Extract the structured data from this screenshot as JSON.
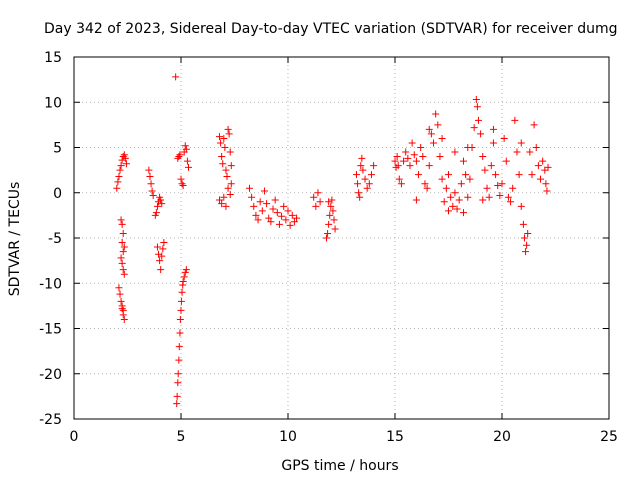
{
  "chart_data": {
    "type": "scatter",
    "title": "Day 342 of 2023, Sidereal Day-to-day VTEC variation (SDTVAR) for receiver dumg",
    "xlabel": "GPS time / hours",
    "ylabel": "SDTVAR / TECUs",
    "xlim": [
      0,
      25
    ],
    "ylim": [
      -25,
      15
    ],
    "xticks": [
      0,
      5,
      10,
      15,
      20,
      25
    ],
    "yticks": [
      -25,
      -20,
      -15,
      -10,
      -5,
      0,
      5,
      10,
      15
    ],
    "grid": true,
    "marker": "+",
    "color": "#ff0000",
    "series": [
      {
        "name": "SDTVAR",
        "points": [
          [
            2.0,
            0.5
          ],
          [
            2.05,
            1.2
          ],
          [
            2.1,
            1.8
          ],
          [
            2.15,
            2.5
          ],
          [
            2.2,
            3.0
          ],
          [
            2.25,
            3.6
          ],
          [
            2.3,
            4.0
          ],
          [
            2.35,
            4.2
          ],
          [
            2.4,
            3.8
          ],
          [
            2.45,
            3.2
          ],
          [
            2.1,
            -10.5
          ],
          [
            2.15,
            -11.2
          ],
          [
            2.2,
            -12.0
          ],
          [
            2.25,
            -12.8
          ],
          [
            2.3,
            -13.5
          ],
          [
            2.35,
            -14.0
          ],
          [
            2.3,
            -13.0
          ],
          [
            2.25,
            -12.5
          ],
          [
            2.2,
            -7.2
          ],
          [
            2.25,
            -7.8
          ],
          [
            2.3,
            -8.5
          ],
          [
            2.35,
            -9.0
          ],
          [
            2.3,
            -6.5
          ],
          [
            2.25,
            -5.5
          ],
          [
            2.3,
            -4.5
          ],
          [
            2.25,
            -3.5
          ],
          [
            2.2,
            -3.0
          ],
          [
            2.35,
            -6.0
          ],
          [
            3.5,
            2.5
          ],
          [
            3.55,
            1.8
          ],
          [
            3.6,
            1.0
          ],
          [
            3.65,
            0.2
          ],
          [
            3.7,
            -0.3
          ],
          [
            3.8,
            -2.5
          ],
          [
            3.85,
            -2.2
          ],
          [
            3.9,
            -1.5
          ],
          [
            3.95,
            -1.0
          ],
          [
            4.0,
            -0.5
          ],
          [
            4.05,
            -0.8
          ],
          [
            4.1,
            -1.2
          ],
          [
            3.9,
            -6.0
          ],
          [
            3.95,
            -6.8
          ],
          [
            4.0,
            -7.5
          ],
          [
            4.05,
            -8.5
          ],
          [
            4.1,
            -7.0
          ],
          [
            4.15,
            -6.2
          ],
          [
            4.2,
            -5.5
          ],
          [
            4.75,
            12.8
          ],
          [
            4.8,
            -23.3
          ],
          [
            4.82,
            -22.5
          ],
          [
            4.85,
            -21.0
          ],
          [
            4.87,
            -20.0
          ],
          [
            4.9,
            -18.5
          ],
          [
            4.92,
            -17.0
          ],
          [
            4.95,
            -15.5
          ],
          [
            4.97,
            -14.0
          ],
          [
            5.0,
            -13.0
          ],
          [
            5.02,
            -12.0
          ],
          [
            5.05,
            -11.0
          ],
          [
            5.08,
            -10.2
          ],
          [
            5.1,
            -9.8
          ],
          [
            5.15,
            -9.3
          ],
          [
            5.2,
            -8.8
          ],
          [
            5.25,
            -8.5
          ],
          [
            4.85,
            3.8
          ],
          [
            4.9,
            4.0
          ],
          [
            4.95,
            4.2
          ],
          [
            5.0,
            1.5
          ],
          [
            5.05,
            1.0
          ],
          [
            5.1,
            0.8
          ],
          [
            5.15,
            4.5
          ],
          [
            5.2,
            5.2
          ],
          [
            5.25,
            4.8
          ],
          [
            5.3,
            3.5
          ],
          [
            5.35,
            2.8
          ],
          [
            6.8,
            6.2
          ],
          [
            6.85,
            5.5
          ],
          [
            6.9,
            4.0
          ],
          [
            6.95,
            3.2
          ],
          [
            7.0,
            6.0
          ],
          [
            7.05,
            5.0
          ],
          [
            7.1,
            2.5
          ],
          [
            7.15,
            1.8
          ],
          [
            7.2,
            7.0
          ],
          [
            7.25,
            6.5
          ],
          [
            7.3,
            4.5
          ],
          [
            7.35,
            3.0
          ],
          [
            6.8,
            -0.8
          ],
          [
            6.9,
            -1.2
          ],
          [
            7.0,
            -0.5
          ],
          [
            7.1,
            -1.5
          ],
          [
            7.2,
            0.5
          ],
          [
            7.3,
            -0.2
          ],
          [
            7.35,
            1.0
          ],
          [
            8.2,
            0.5
          ],
          [
            8.3,
            -0.5
          ],
          [
            8.4,
            -1.5
          ],
          [
            8.5,
            -2.5
          ],
          [
            8.6,
            -3.0
          ],
          [
            8.7,
            -1.0
          ],
          [
            8.8,
            -2.0
          ],
          [
            8.9,
            0.2
          ],
          [
            9.0,
            -1.2
          ],
          [
            9.1,
            -2.8
          ],
          [
            9.2,
            -3.2
          ],
          [
            9.3,
            -1.8
          ],
          [
            9.4,
            -0.8
          ],
          [
            9.5,
            -2.2
          ],
          [
            9.6,
            -3.5
          ],
          [
            9.7,
            -2.6
          ],
          [
            9.8,
            -1.5
          ],
          [
            9.9,
            -3.0
          ],
          [
            10.0,
            -2.0
          ],
          [
            10.1,
            -3.6
          ],
          [
            10.2,
            -2.5
          ],
          [
            10.3,
            -3.2
          ],
          [
            10.4,
            -2.8
          ],
          [
            11.2,
            -0.5
          ],
          [
            11.3,
            -1.5
          ],
          [
            11.4,
            0.0
          ],
          [
            11.5,
            -1.0
          ],
          [
            11.8,
            -5.0
          ],
          [
            11.85,
            -4.5
          ],
          [
            11.9,
            -3.5
          ],
          [
            11.95,
            -2.5
          ],
          [
            12.0,
            -1.5
          ],
          [
            12.05,
            -0.8
          ],
          [
            12.1,
            -2.0
          ],
          [
            12.15,
            -3.0
          ],
          [
            12.2,
            -4.0
          ],
          [
            11.9,
            -1.0
          ],
          [
            13.2,
            2.0
          ],
          [
            13.25,
            1.0
          ],
          [
            13.3,
            0.0
          ],
          [
            13.35,
            -0.5
          ],
          [
            13.4,
            3.0
          ],
          [
            13.45,
            3.8
          ],
          [
            13.5,
            2.5
          ],
          [
            13.6,
            1.5
          ],
          [
            13.7,
            0.5
          ],
          [
            13.8,
            1.0
          ],
          [
            13.9,
            2.0
          ],
          [
            14.0,
            3.0
          ],
          [
            15.0,
            3.5
          ],
          [
            15.05,
            2.8
          ],
          [
            15.1,
            4.0
          ],
          [
            15.15,
            3.0
          ],
          [
            15.2,
            1.5
          ],
          [
            15.3,
            1.0
          ],
          [
            15.4,
            3.5
          ],
          [
            15.5,
            4.5
          ],
          [
            15.6,
            3.8
          ],
          [
            15.7,
            3.0
          ],
          [
            15.8,
            5.5
          ],
          [
            15.9,
            4.2
          ],
          [
            16.0,
            3.5
          ],
          [
            16.1,
            2.0
          ],
          [
            16.2,
            5.0
          ],
          [
            16.3,
            4.0
          ],
          [
            16.4,
            1.0
          ],
          [
            16.5,
            0.5
          ],
          [
            16.6,
            3.0
          ],
          [
            16.7,
            6.5
          ],
          [
            16.8,
            5.5
          ],
          [
            16.9,
            8.7
          ],
          [
            17.0,
            7.5
          ],
          [
            17.1,
            4.0
          ],
          [
            17.2,
            1.5
          ],
          [
            17.3,
            -1.0
          ],
          [
            17.4,
            0.5
          ],
          [
            17.5,
            2.0
          ],
          [
            17.6,
            -0.5
          ],
          [
            17.7,
            -1.5
          ],
          [
            17.8,
            0.0
          ],
          [
            17.9,
            -1.8
          ],
          [
            18.0,
            -0.8
          ],
          [
            18.1,
            1.0
          ],
          [
            18.2,
            3.5
          ],
          [
            18.3,
            2.0
          ],
          [
            18.4,
            -0.5
          ],
          [
            18.5,
            1.5
          ],
          [
            18.6,
            5.0
          ],
          [
            18.7,
            7.2
          ],
          [
            18.8,
            10.3
          ],
          [
            18.85,
            9.5
          ],
          [
            18.9,
            8.0
          ],
          [
            19.0,
            6.5
          ],
          [
            19.1,
            4.0
          ],
          [
            19.2,
            2.5
          ],
          [
            19.3,
            0.5
          ],
          [
            19.4,
            -0.5
          ],
          [
            19.5,
            3.0
          ],
          [
            19.6,
            5.5
          ],
          [
            19.7,
            2.0
          ],
          [
            19.8,
            0.8
          ],
          [
            19.9,
            -0.3
          ],
          [
            20.0,
            1.0
          ],
          [
            20.1,
            6.0
          ],
          [
            20.2,
            3.5
          ],
          [
            20.3,
            -0.5
          ],
          [
            20.4,
            -1.0
          ],
          [
            20.5,
            0.5
          ],
          [
            20.6,
            8.0
          ],
          [
            20.7,
            4.5
          ],
          [
            20.8,
            2.0
          ],
          [
            20.9,
            -1.5
          ],
          [
            21.0,
            -3.5
          ],
          [
            21.05,
            -5.0
          ],
          [
            21.1,
            -6.5
          ],
          [
            21.15,
            -5.8
          ],
          [
            21.2,
            -4.5
          ],
          [
            21.3,
            4.5
          ],
          [
            21.4,
            2.0
          ],
          [
            21.5,
            7.5
          ],
          [
            21.6,
            5.0
          ],
          [
            21.7,
            3.0
          ],
          [
            21.8,
            1.5
          ],
          [
            21.9,
            3.5
          ],
          [
            22.0,
            2.5
          ],
          [
            22.05,
            1.0
          ],
          [
            22.1,
            0.2
          ],
          [
            22.15,
            2.8
          ],
          [
            17.2,
            6.0
          ],
          [
            16.6,
            7.0
          ],
          [
            17.8,
            4.5
          ],
          [
            18.4,
            5.0
          ],
          [
            19.6,
            7.0
          ],
          [
            20.9,
            5.5
          ],
          [
            16.0,
            -0.8
          ],
          [
            17.5,
            -2.0
          ],
          [
            18.2,
            -2.2
          ],
          [
            19.1,
            -0.8
          ]
        ]
      }
    ]
  }
}
